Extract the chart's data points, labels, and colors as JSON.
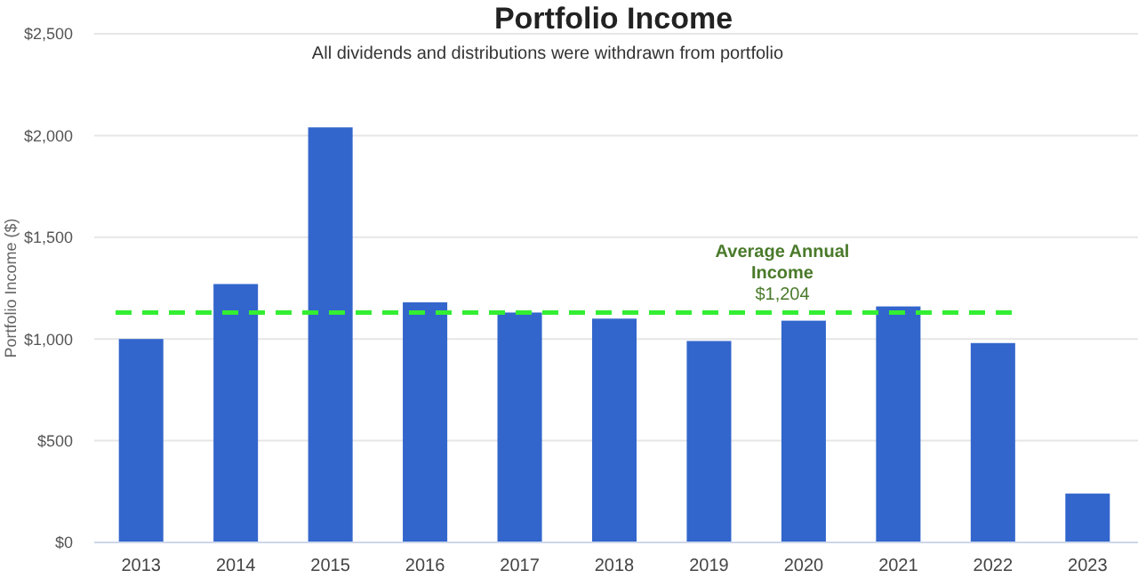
{
  "chart_data": {
    "type": "bar",
    "title": "Portfolio Income",
    "subtitle": "All dividends and distributions were withdrawn from portfolio",
    "ylabel": "Portfolio Income ($)",
    "categories": [
      "2013",
      "2014",
      "2015",
      "2016",
      "2017",
      "2018",
      "2019",
      "2020",
      "2021",
      "2022",
      "2023"
    ],
    "values": [
      1000,
      1270,
      2040,
      1180,
      1130,
      1100,
      990,
      1090,
      1160,
      980,
      240
    ],
    "color": "#3366cc",
    "ylim": [
      0,
      2500
    ],
    "yticks": [
      {
        "value": 0,
        "label": "$0"
      },
      {
        "value": 500,
        "label": "$500"
      },
      {
        "value": 1000,
        "label": "$1,000"
      },
      {
        "value": 1500,
        "label": "$1,500"
      },
      {
        "value": 2000,
        "label": "$2,000"
      },
      {
        "value": 2500,
        "label": "$2,500"
      }
    ],
    "grid": "y",
    "ref_lines": [
      {
        "axis": "y",
        "value": 1130,
        "label": "Average Annual Income",
        "color": "#33ee33",
        "line_style": "dashed"
      }
    ],
    "annotations": [
      "$1,204"
    ]
  }
}
